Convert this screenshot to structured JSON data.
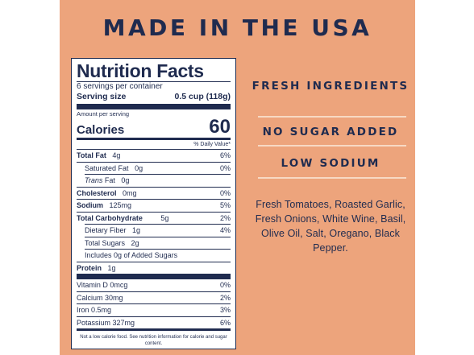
{
  "headline": "MADE IN THE USA",
  "claims": [
    "FRESH INGREDIENTS",
    "NO SUGAR ADDED",
    "LOW SODIUM"
  ],
  "ingredients": "Fresh Tomatoes, Roasted Garlic, Fresh Onions, White Wine, Basil, Olive Oil, Salt, Oregano, Black Pepper.",
  "nutrition": {
    "title": "Nutrition Facts",
    "servings": "6 servings per container",
    "serving_size_label": "Serving size",
    "serving_size_value": "0.5 cup (118g)",
    "amount_per_serving": "Amount per serving",
    "calories_label": "Calories",
    "calories_value": "60",
    "daily_value_header": "% Daily Value*",
    "total_fat": {
      "label": "Total Fat",
      "amount": "4g",
      "dv": "6%"
    },
    "saturated_fat": {
      "label": "Saturated Fat",
      "amount": "0g",
      "dv": "0%"
    },
    "trans_fat": {
      "label": "Trans",
      "label2": "Fat",
      "amount": "0g"
    },
    "cholesterol": {
      "label": "Cholesterol",
      "amount": "0mg",
      "dv": "0%"
    },
    "sodium": {
      "label": "Sodium",
      "amount": "125mg",
      "dv": "5%"
    },
    "total_carb": {
      "label": "Total Carbohydrate",
      "amount": "5g",
      "dv": "2%"
    },
    "fiber": {
      "label": "Dietary Fiber",
      "amount": "1g",
      "dv": "4%"
    },
    "sugars": {
      "label": "Total Sugars",
      "amount": "2g"
    },
    "added_sugars": "Includes 0g of Added Sugars",
    "protein": {
      "label": "Protein",
      "amount": "1g"
    },
    "vitamins": [
      {
        "label": "Vitamin D 0mcg",
        "dv": "0%"
      },
      {
        "label": "Calcium 30mg",
        "dv": "2%"
      },
      {
        "label": "Iron 0.5mg",
        "dv": "3%"
      },
      {
        "label": "Potassium 327mg",
        "dv": "6%"
      }
    ],
    "footnote": "Not a low calorie food. See nutrition information for calorie and sugar content."
  }
}
